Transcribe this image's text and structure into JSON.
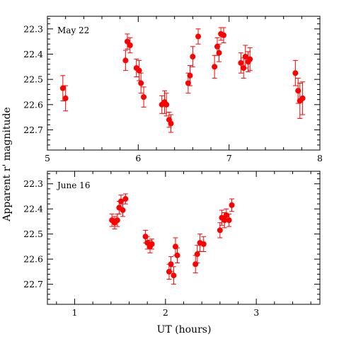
{
  "figure": {
    "xlabel": "UT (hours)",
    "ylabel": "Apparent r' magnitude",
    "marker_color": "#ff0000",
    "error_color": "#ff0000"
  },
  "chart_data": [
    {
      "type": "scatter",
      "panel_label": "May 22",
      "xlim": [
        5,
        8
      ],
      "ylim": [
        22.25,
        22.78
      ],
      "y_inverted": true,
      "x_ticks": [
        5,
        6,
        7,
        8
      ],
      "y_ticks": [
        22.3,
        22.4,
        22.5,
        22.6,
        22.7
      ],
      "points": [
        {
          "x": 5.17,
          "y": 22.535,
          "err": 0.05
        },
        {
          "x": 5.2,
          "y": 22.575,
          "err": 0.05
        },
        {
          "x": 5.86,
          "y": 22.425,
          "err": 0.04
        },
        {
          "x": 5.88,
          "y": 22.35,
          "err": 0.03
        },
        {
          "x": 5.91,
          "y": 22.365,
          "err": 0.03
        },
        {
          "x": 5.98,
          "y": 22.455,
          "err": 0.035
        },
        {
          "x": 6.01,
          "y": 22.465,
          "err": 0.04
        },
        {
          "x": 6.03,
          "y": 22.515,
          "err": 0.04
        },
        {
          "x": 6.06,
          "y": 22.57,
          "err": 0.04
        },
        {
          "x": 6.26,
          "y": 22.6,
          "err": 0.035
        },
        {
          "x": 6.29,
          "y": 22.59,
          "err": 0.045
        },
        {
          "x": 6.31,
          "y": 22.6,
          "err": 0.045
        },
        {
          "x": 6.34,
          "y": 22.66,
          "err": 0.03
        },
        {
          "x": 6.36,
          "y": 22.675,
          "err": 0.035
        },
        {
          "x": 6.55,
          "y": 22.515,
          "err": 0.04
        },
        {
          "x": 6.57,
          "y": 22.485,
          "err": 0.04
        },
        {
          "x": 6.6,
          "y": 22.41,
          "err": 0.04
        },
        {
          "x": 6.66,
          "y": 22.33,
          "err": 0.03
        },
        {
          "x": 6.84,
          "y": 22.45,
          "err": 0.045
        },
        {
          "x": 6.87,
          "y": 22.37,
          "err": 0.035
        },
        {
          "x": 6.89,
          "y": 22.395,
          "err": 0.035
        },
        {
          "x": 6.91,
          "y": 22.32,
          "err": 0.025
        },
        {
          "x": 6.94,
          "y": 22.325,
          "err": 0.03
        },
        {
          "x": 7.13,
          "y": 22.435,
          "err": 0.04
        },
        {
          "x": 7.16,
          "y": 22.455,
          "err": 0.04
        },
        {
          "x": 7.18,
          "y": 22.41,
          "err": 0.045
        },
        {
          "x": 7.21,
          "y": 22.43,
          "err": 0.04
        },
        {
          "x": 7.23,
          "y": 22.42,
          "err": 0.045
        },
        {
          "x": 7.73,
          "y": 22.475,
          "err": 0.05
        },
        {
          "x": 7.76,
          "y": 22.545,
          "err": 0.05
        },
        {
          "x": 7.78,
          "y": 22.585,
          "err": 0.07
        },
        {
          "x": 7.81,
          "y": 22.575,
          "err": 0.065
        }
      ]
    },
    {
      "type": "scatter",
      "panel_label": "June 16",
      "xlim": [
        0.7,
        3.7
      ],
      "ylim": [
        22.25,
        22.78
      ],
      "y_inverted": true,
      "x_ticks": [
        1,
        2,
        3
      ],
      "y_ticks": [
        22.3,
        22.4,
        22.5,
        22.6,
        22.7
      ],
      "points": [
        {
          "x": 1.41,
          "y": 22.445,
          "err": 0.025
        },
        {
          "x": 1.44,
          "y": 22.455,
          "err": 0.025
        },
        {
          "x": 1.47,
          "y": 22.445,
          "err": 0.025
        },
        {
          "x": 1.49,
          "y": 22.395,
          "err": 0.025
        },
        {
          "x": 1.51,
          "y": 22.37,
          "err": 0.025
        },
        {
          "x": 1.53,
          "y": 22.405,
          "err": 0.025
        },
        {
          "x": 1.56,
          "y": 22.36,
          "err": 0.02
        },
        {
          "x": 1.78,
          "y": 22.51,
          "err": 0.025
        },
        {
          "x": 1.8,
          "y": 22.535,
          "err": 0.025
        },
        {
          "x": 1.83,
          "y": 22.55,
          "err": 0.025
        },
        {
          "x": 1.85,
          "y": 22.54,
          "err": 0.02
        },
        {
          "x": 2.04,
          "y": 22.65,
          "err": 0.03
        },
        {
          "x": 2.06,
          "y": 22.62,
          "err": 0.03
        },
        {
          "x": 2.09,
          "y": 22.665,
          "err": 0.035
        },
        {
          "x": 2.11,
          "y": 22.55,
          "err": 0.035
        },
        {
          "x": 2.13,
          "y": 22.585,
          "err": 0.03
        },
        {
          "x": 2.33,
          "y": 22.62,
          "err": 0.035
        },
        {
          "x": 2.35,
          "y": 22.58,
          "err": 0.035
        },
        {
          "x": 2.38,
          "y": 22.535,
          "err": 0.035
        },
        {
          "x": 2.42,
          "y": 22.54,
          "err": 0.03
        },
        {
          "x": 2.6,
          "y": 22.485,
          "err": 0.03
        },
        {
          "x": 2.62,
          "y": 22.435,
          "err": 0.03
        },
        {
          "x": 2.65,
          "y": 22.445,
          "err": 0.03
        },
        {
          "x": 2.67,
          "y": 22.425,
          "err": 0.025
        },
        {
          "x": 2.7,
          "y": 22.445,
          "err": 0.025
        },
        {
          "x": 2.73,
          "y": 22.385,
          "err": 0.025
        }
      ]
    }
  ]
}
